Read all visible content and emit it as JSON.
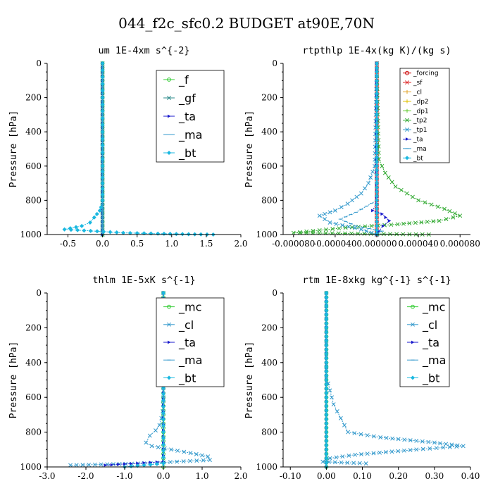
{
  "figure": {
    "title": "044_f2c_sfc0.2  BUDGET at90E,70N"
  },
  "chart_data": [
    {
      "type": "line",
      "title": "um  1E-4xm s^{-2}",
      "ylabel": "Pressure [hPa]",
      "xlim": [
        -0.8,
        2.0
      ],
      "ylim": [
        1000,
        0
      ],
      "xticks": [
        "-0.5",
        "0.0",
        "0.5",
        "1.0",
        "1.5",
        "2.0"
      ],
      "xtick_values": [
        -0.5,
        0.0,
        0.5,
        1.0,
        1.5,
        2.0
      ],
      "yticks": [
        "0",
        "200",
        "400",
        "600",
        "800",
        "1000"
      ],
      "legend_style": "large",
      "series": [
        {
          "name": "_f",
          "color": "#33cc33",
          "marker": "o",
          "x": [
            0,
            0
          ],
          "y": [
            0,
            1000
          ]
        },
        {
          "name": "_gf",
          "color": "#2e8b8b",
          "marker": "x",
          "x": [
            0,
            0
          ],
          "y": [
            0,
            1000
          ]
        },
        {
          "name": "_ta",
          "color": "#1a1acc",
          "marker": ">",
          "x": [
            0,
            0
          ],
          "y": [
            0,
            1000
          ]
        },
        {
          "name": "_ma",
          "color": "#3399cc",
          "marker": "-",
          "x": [
            0,
            0
          ],
          "y": [
            0,
            1000
          ]
        },
        {
          "name": "_bt",
          "color": "#1ab8e0",
          "marker": "d",
          "x": [
            0,
            0,
            0,
            0,
            0,
            0,
            -0.02,
            -0.04,
            -0.08,
            -0.12,
            -0.18,
            -0.3,
            -0.55,
            0.3,
            0.8,
            1.6
          ],
          "y": [
            0,
            200,
            400,
            600,
            700,
            800,
            840,
            860,
            880,
            900,
            930,
            950,
            970,
            990,
            995,
            1000
          ]
        }
      ]
    },
    {
      "type": "line",
      "title": "rtpthlp  1E-4x(kg K)/(kg s)",
      "ylabel": "Pressure [hPa]",
      "xlim": [
        -9e-05,
        9e-05
      ],
      "ylim": [
        1000,
        0
      ],
      "xticks": [
        "-0.000080",
        "-0.000040",
        "0.000000",
        "0.000040",
        "0.000080"
      ],
      "xtick_values": [
        -8e-05,
        -4e-05,
        0.0,
        4e-05,
        8e-05
      ],
      "yticks": [
        "0",
        "200",
        "400",
        "600",
        "800",
        "1000"
      ],
      "legend_style": "small",
      "series": [
        {
          "name": "_forcing",
          "color": "#cc0000",
          "marker": "o",
          "x": [
            0,
            0
          ],
          "y": [
            0,
            1000
          ]
        },
        {
          "name": "_sf",
          "color": "#e03030",
          "marker": "x",
          "x": [
            0,
            0
          ],
          "y": [
            0,
            1000
          ]
        },
        {
          "name": "_cl",
          "color": "#e0a020",
          "marker": "+",
          "x": [
            0,
            0
          ],
          "y": [
            0,
            1000
          ]
        },
        {
          "name": "_dp2",
          "color": "#e0c000",
          "marker": "+",
          "x": [
            0,
            0
          ],
          "y": [
            0,
            1000
          ]
        },
        {
          "name": "_dp1",
          "color": "#66cc33",
          "marker": "+",
          "x": [
            0,
            0
          ],
          "y": [
            0,
            1000
          ]
        },
        {
          "name": "_tp2",
          "color": "#33aa33",
          "marker": "x",
          "x": [
            0,
            2e-06,
            8e-06,
            1.8e-05,
            4e-05,
            6.5e-05,
            8e-05,
            6e-05,
            2e-05,
            -3e-05,
            -8e-05,
            5e-05
          ],
          "y": [
            0,
            560,
            640,
            720,
            800,
            850,
            890,
            920,
            940,
            960,
            990,
            1000
          ]
        },
        {
          "name": "_tp1",
          "color": "#3399cc",
          "marker": "x",
          "x": [
            0,
            -2e-06,
            -8e-06,
            -1.5e-05,
            -2.8e-05,
            -4e-05,
            -5.5e-05,
            -4.5e-05,
            -1.5e-05,
            0
          ],
          "y": [
            0,
            600,
            700,
            760,
            820,
            860,
            890,
            930,
            970,
            1000
          ]
        },
        {
          "name": "_ta",
          "color": "#1a1acc",
          "marker": ">",
          "x": [
            0,
            0,
            -4e-06,
            5e-06,
            1.2e-05,
            6e-06,
            2e-06,
            0
          ],
          "y": [
            0,
            820,
            860,
            880,
            920,
            950,
            980,
            1000
          ]
        },
        {
          "name": "_ma",
          "color": "#3399cc",
          "marker": "-",
          "x": [
            0,
            0,
            -2e-05,
            -3.5e-05,
            -2e-05,
            5e-06,
            0
          ],
          "y": [
            0,
            800,
            870,
            910,
            950,
            980,
            1000
          ]
        },
        {
          "name": "_bt",
          "color": "#1ab8e0",
          "marker": "d",
          "x": [
            0,
            0
          ],
          "y": [
            0,
            1000
          ]
        }
      ]
    },
    {
      "type": "line",
      "title": "thlm  1E-5xK s^{-1}",
      "ylabel": "Pressure [hPa]",
      "xlim": [
        -3.0,
        2.0
      ],
      "ylim": [
        1000,
        0
      ],
      "xticks": [
        "-3.0",
        "-2.0",
        "-1.0",
        "0.0",
        "1.0",
        "2.0"
      ],
      "xtick_values": [
        -3.0,
        -2.0,
        -1.0,
        0.0,
        1.0,
        2.0
      ],
      "yticks": [
        "0",
        "200",
        "400",
        "600",
        "800",
        "1000"
      ],
      "legend_style": "large",
      "series": [
        {
          "name": "_mc",
          "color": "#33cc33",
          "marker": "o",
          "x": [
            0,
            0
          ],
          "y": [
            0,
            1000
          ]
        },
        {
          "name": "_cl",
          "color": "#3399cc",
          "marker": "x",
          "x": [
            0,
            0,
            -0.02,
            -0.05,
            -0.1,
            -0.2,
            -0.35,
            -0.45,
            -0.3,
            0.2,
            0.7,
            1.15,
            1.2,
            -0.5,
            -2.4
          ],
          "y": [
            0,
            600,
            680,
            720,
            760,
            790,
            820,
            860,
            880,
            900,
            920,
            940,
            960,
            980,
            990
          ]
        },
        {
          "name": "_ta",
          "color": "#1a1acc",
          "marker": ">",
          "x": [
            0,
            0,
            -1.5
          ],
          "y": [
            0,
            970,
            990
          ]
        },
        {
          "name": "_ma",
          "color": "#3399cc",
          "marker": "-",
          "x": [
            0,
            0
          ],
          "y": [
            0,
            1000
          ]
        },
        {
          "name": "_bt",
          "color": "#1ab8e0",
          "marker": "d",
          "x": [
            0,
            0,
            -1.0
          ],
          "y": [
            0,
            980,
            1000
          ]
        }
      ]
    },
    {
      "type": "line",
      "title": "rtm  1E-8xkg kg^{-1} s^{-1}",
      "ylabel": "Pressure [hPa]",
      "xlim": [
        -0.12,
        0.4
      ],
      "ylim": [
        1000,
        0
      ],
      "xticks": [
        "-0.10",
        "0.00",
        "0.10",
        "0.20",
        "0.30",
        "0.40"
      ],
      "xtick_values": [
        -0.1,
        0.0,
        0.1,
        0.2,
        0.3,
        0.4
      ],
      "yticks": [
        "0",
        "200",
        "400",
        "600",
        "800",
        "1000"
      ],
      "legend_style": "large",
      "series": [
        {
          "name": "_mc",
          "color": "#33cc33",
          "marker": "o",
          "x": [
            0,
            0
          ],
          "y": [
            0,
            1000
          ]
        },
        {
          "name": "_cl",
          "color": "#3399cc",
          "marker": "x",
          "x": [
            0,
            0,
            0.005,
            0.01,
            0.015,
            0.02,
            0.03,
            0.04,
            0.05,
            0.06,
            0.15,
            0.3,
            0.38,
            0.25,
            0.08,
            0.01,
            -0.01,
            0.11
          ],
          "y": [
            0,
            480,
            520,
            560,
            600,
            640,
            680,
            720,
            760,
            800,
            830,
            860,
            880,
            900,
            930,
            950,
            970,
            980
          ]
        },
        {
          "name": "_ta",
          "color": "#1a1acc",
          "marker": ">",
          "x": [
            0,
            0
          ],
          "y": [
            0,
            1000
          ]
        },
        {
          "name": "_ma",
          "color": "#3399cc",
          "marker": "-",
          "x": [
            0,
            0
          ],
          "y": [
            0,
            1000
          ]
        },
        {
          "name": "_bt",
          "color": "#1ab8e0",
          "marker": "d",
          "x": [
            0,
            0
          ],
          "y": [
            0,
            1000
          ]
        }
      ]
    }
  ]
}
